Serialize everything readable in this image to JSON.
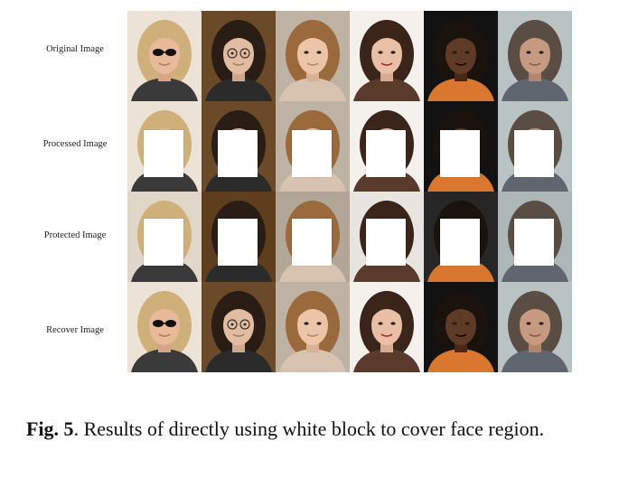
{
  "rows": [
    {
      "label": "Original Image",
      "covered": false,
      "variant": "orig"
    },
    {
      "label": "Processed Image",
      "covered": true,
      "variant": "proc"
    },
    {
      "label": "Protected Image",
      "covered": true,
      "variant": "prot"
    },
    {
      "label": "Recover Image",
      "covered": false,
      "variant": "orig"
    }
  ],
  "subjects": [
    {
      "name": "woman-blonde-sunglasses",
      "bg": "#ece3d6",
      "skin": "#e8b99a",
      "hair": "#cfb07a",
      "cloth": "#3a3a3a"
    },
    {
      "name": "boy-round-glasses",
      "bg": "#6b4a2a",
      "skin": "#e2bca0",
      "hair": "#2a1d15",
      "cloth": "#2b2b2b"
    },
    {
      "name": "woman-auburn-bob",
      "bg": "#bdb2a4",
      "skin": "#ecc4a7",
      "hair": "#9a6a3c",
      "cloth": "#d8c2b0"
    },
    {
      "name": "woman-long-dark-hair",
      "bg": "#f4f1ed",
      "skin": "#e9bfa6",
      "hair": "#3b2419",
      "cloth": "#5a3a2a"
    },
    {
      "name": "man-dark-bg",
      "bg": "#121212",
      "skin": "#5d3b26",
      "hair": "#1a120c",
      "cloth": "#d9772f"
    },
    {
      "name": "man-gray-suit",
      "bg": "#b9c3c4",
      "skin": "#c69a80",
      "hair": "#5a4d44",
      "cloth": "#5f6670"
    }
  ],
  "caption": {
    "label": "Fig. 5",
    "text": ". Results of directly using white block to cover face region."
  }
}
